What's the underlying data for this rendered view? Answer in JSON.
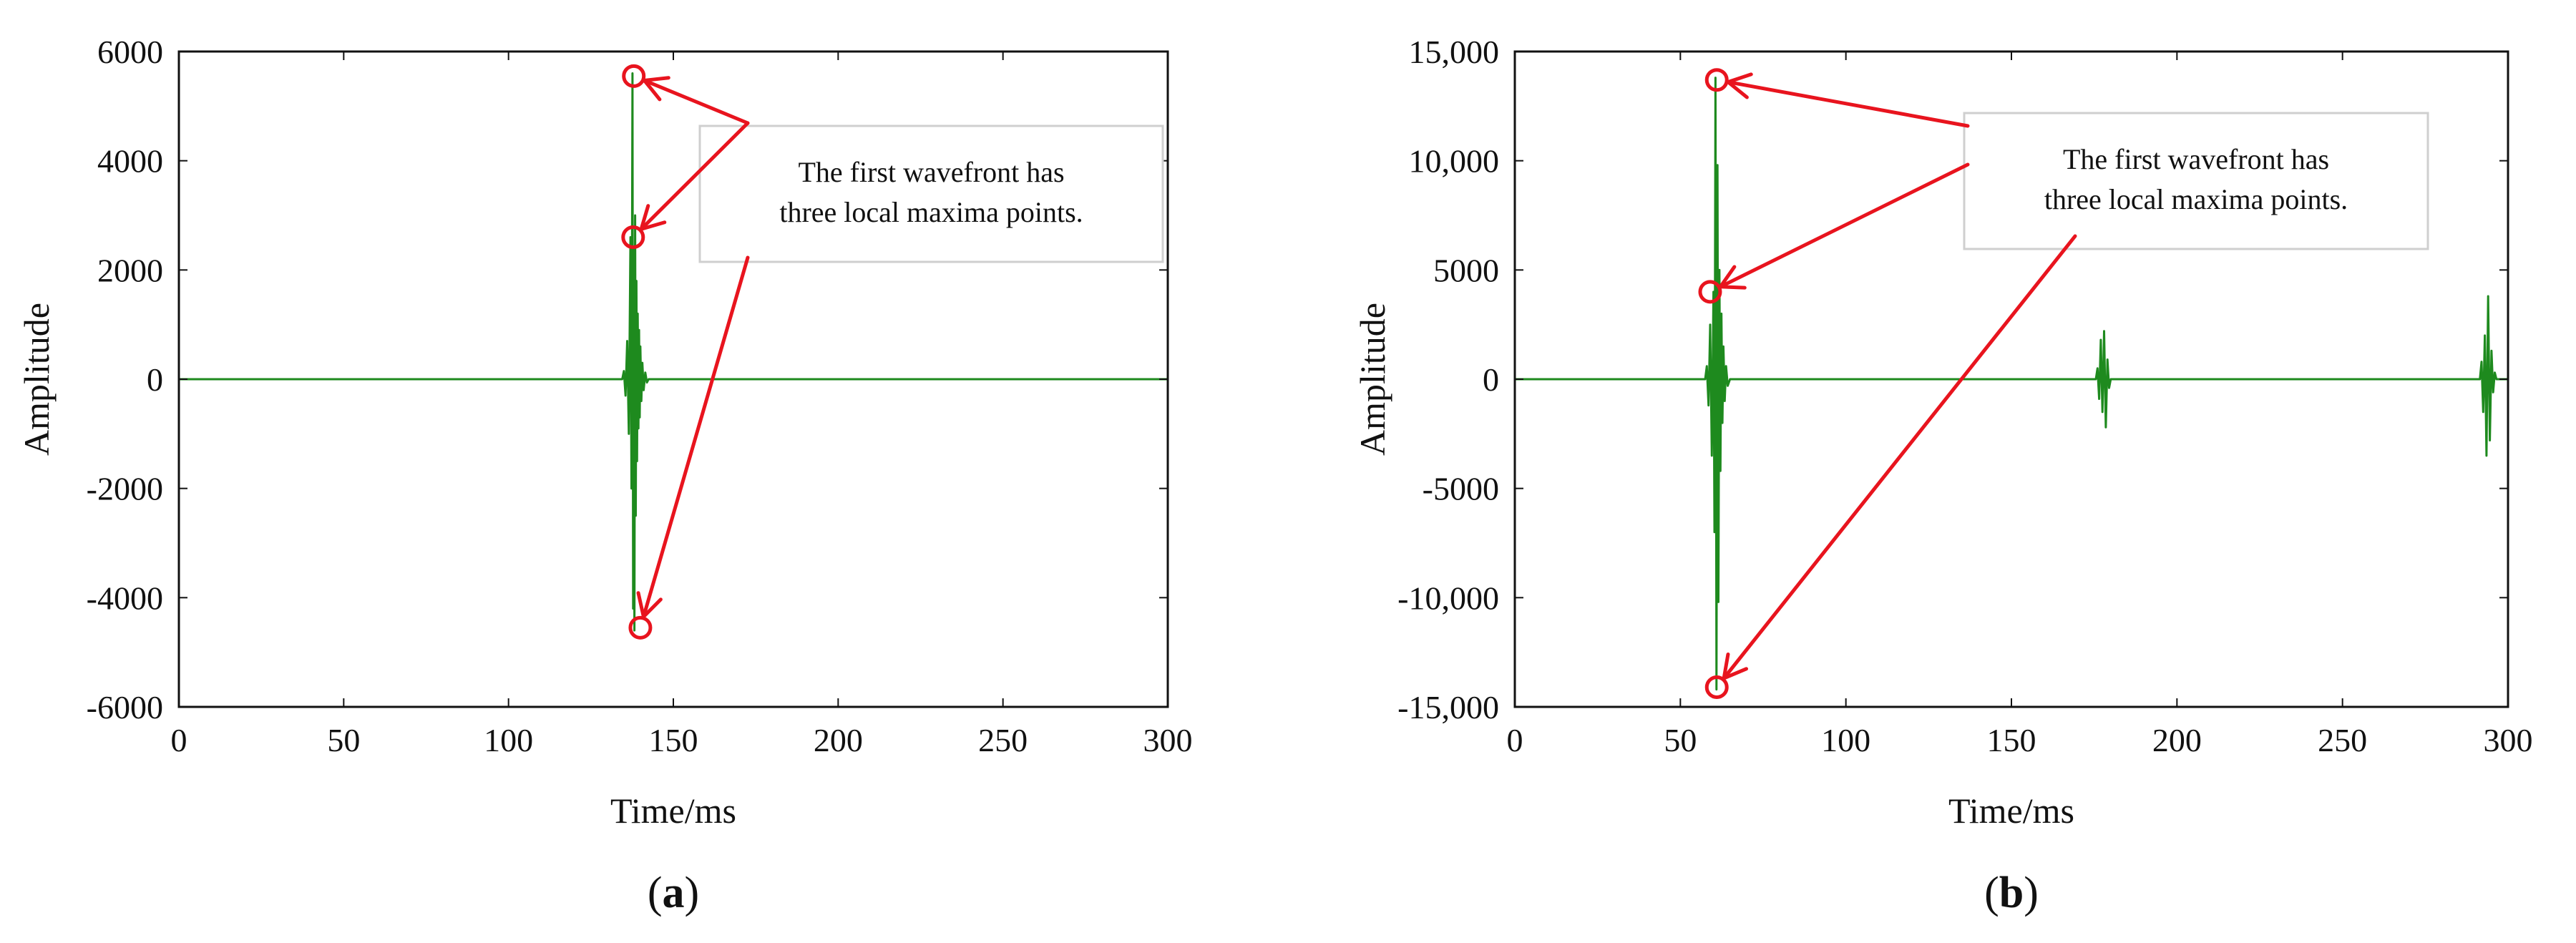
{
  "colors": {
    "signal": "#1e8a1e",
    "annotation": "#e8141e",
    "axis": "#111111",
    "callout_border": "#cfcfcf"
  },
  "chart_data": [
    {
      "type": "line",
      "panel_label": "a",
      "xlabel": "Time/ms",
      "ylabel": "Amplitude",
      "xlim": [
        0,
        300
      ],
      "ylim": [
        -6000,
        6000
      ],
      "x_ticks": [
        0,
        50,
        100,
        150,
        200,
        250,
        300
      ],
      "y_ticks": [
        -6000,
        -4000,
        -2000,
        0,
        2000,
        4000,
        6000
      ],
      "x_tick_labels": [
        "0",
        "50",
        "100",
        "150",
        "200",
        "250",
        "300"
      ],
      "y_tick_labels": [
        "-6000",
        "-4000",
        "-2000",
        "0",
        "2000",
        "4000",
        "6000"
      ],
      "grid": false,
      "series": [
        {
          "x": [
            0,
            134.5,
            135,
            135.5,
            136,
            136.5,
            137,
            137.3,
            137.6,
            137.8,
            138,
            138.2,
            138.4,
            138.6,
            138.8,
            139,
            139.2,
            139.4,
            139.6,
            139.8,
            140,
            140.3,
            140.6,
            141,
            141.5,
            142,
            142.5,
            300
          ],
          "y": [
            0,
            0,
            150,
            -300,
            700,
            -1000,
            2600,
            -2000,
            5600,
            -4200,
            2400,
            -4600,
            3000,
            -2500,
            1800,
            -1500,
            1200,
            -900,
            900,
            -700,
            600,
            -400,
            300,
            -200,
            120,
            -60,
            0,
            0
          ]
        }
      ],
      "markers": [
        {
          "x": 138,
          "y": 5550
        },
        {
          "x": 137.8,
          "y": 2600
        },
        {
          "x": 140,
          "y": -4550
        }
      ],
      "annotation": "The first wavefront has\nthree local maxima points."
    },
    {
      "type": "line",
      "panel_label": "b",
      "xlabel": "Time/ms",
      "ylabel": "Amplitude",
      "xlim": [
        0,
        300
      ],
      "ylim": [
        -15000,
        15000
      ],
      "x_ticks": [
        0,
        50,
        100,
        150,
        200,
        250,
        300
      ],
      "y_ticks": [
        -15000,
        -10000,
        -5000,
        0,
        5000,
        10000,
        15000
      ],
      "x_tick_labels": [
        "0",
        "50",
        "100",
        "150",
        "200",
        "250",
        "300"
      ],
      "y_tick_labels": [
        "-15,000",
        "-10,000",
        "-5000",
        "0",
        "5000",
        "10,000",
        "15,000"
      ],
      "grid": false,
      "series": [
        {
          "x": [
            0,
            57.5,
            58,
            58.5,
            59,
            59.5,
            60,
            60.3,
            60.6,
            60.9,
            61.2,
            61.5,
            61.8,
            62.1,
            62.4,
            62.7,
            63,
            63.4,
            63.8,
            64.3,
            65,
            175.5,
            176,
            176.5,
            177,
            177.5,
            178,
            178.5,
            179,
            179.5,
            180,
            291.5,
            292,
            292.5,
            293,
            293.5,
            294,
            294.5,
            295,
            295.5,
            296,
            296.5,
            300
          ],
          "y": [
            0,
            0,
            600,
            -1200,
            2500,
            -3500,
            4000,
            -7000,
            13800,
            -14200,
            9800,
            -10200,
            5000,
            -4200,
            3000,
            -2000,
            1500,
            -1000,
            600,
            -300,
            0,
            0,
            500,
            -900,
            1800,
            -1500,
            2200,
            -2200,
            900,
            -400,
            0,
            0,
            800,
            -1500,
            2000,
            -3500,
            3800,
            -2800,
            1300,
            -600,
            300,
            0,
            0
          ]
        }
      ],
      "markers": [
        {
          "x": 61,
          "y": 13700
        },
        {
          "x": 59,
          "y": 4000
        },
        {
          "x": 61,
          "y": -14100
        }
      ],
      "annotation": "The first wavefront has\nthree local maxima points."
    }
  ]
}
